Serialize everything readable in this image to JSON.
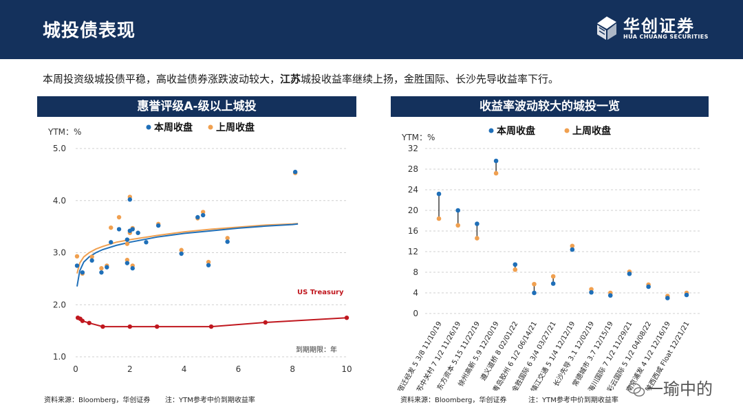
{
  "header": {
    "title": "城投债表现"
  },
  "logo": {
    "name_cn": "华创证券",
    "name_en": "HUA CHUANG SECURITIES"
  },
  "summary": {
    "part1": "本周投资级城投债平稳，高收益债券涨跌波动较大，",
    "bold": "江苏",
    "part2": "城投收益率继续上扬，金胜国际、长沙先导收益率下行。"
  },
  "watermark": "一瑜中的",
  "colors": {
    "current": "#1f6fb8",
    "previous": "#f0a050",
    "treasury": "#c0171e",
    "header": "#14315c"
  },
  "chart_data": [
    {
      "type": "scatter",
      "title": "惠誉评级A-级以上城投",
      "ylabel": "YTM：%",
      "xlabel": "到期期限：年",
      "xlim": [
        0,
        10
      ],
      "ylim": [
        1.0,
        5.0
      ],
      "xticks": [
        "0",
        "2",
        "4",
        "6",
        "8",
        "10"
      ],
      "yticks": [
        "1.0",
        "2.0",
        "3.0",
        "4.0",
        "5.0"
      ],
      "legend": [
        "本周收盘",
        "上周收盘"
      ],
      "annotation": "US Treasury",
      "footnote_source": "资料来源：Bloomberg，华创证券",
      "footnote_note": "注：YTM参考中价到期收益率",
      "series": [
        {
          "name": "本周收盘",
          "points": [
            [
              0.05,
              2.75
            ],
            [
              0.25,
              2.62
            ],
            [
              0.6,
              2.85
            ],
            [
              0.95,
              2.62
            ],
            [
              1.15,
              2.72
            ],
            [
              1.3,
              3.2
            ],
            [
              1.6,
              3.45
            ],
            [
              1.9,
              2.8
            ],
            [
              1.9,
              3.25
            ],
            [
              2.0,
              3.42
            ],
            [
              2.0,
              4.02
            ],
            [
              2.1,
              2.7
            ],
            [
              2.1,
              3.45
            ],
            [
              2.3,
              3.38
            ],
            [
              2.6,
              3.2
            ],
            [
              3.05,
              3.52
            ],
            [
              3.9,
              2.98
            ],
            [
              4.5,
              3.68
            ],
            [
              4.7,
              3.72
            ],
            [
              4.9,
              2.76
            ],
            [
              5.6,
              3.21
            ],
            [
              8.1,
              4.55
            ]
          ]
        },
        {
          "name": "上周收盘",
          "points": [
            [
              0.05,
              2.93
            ],
            [
              0.25,
              2.6
            ],
            [
              0.6,
              2.92
            ],
            [
              0.95,
              2.7
            ],
            [
              1.15,
              2.75
            ],
            [
              1.3,
              3.48
            ],
            [
              1.6,
              3.68
            ],
            [
              1.9,
              2.86
            ],
            [
              1.9,
              3.17
            ],
            [
              2.0,
              3.38
            ],
            [
              2.0,
              4.07
            ],
            [
              2.1,
              2.75
            ],
            [
              2.1,
              3.47
            ],
            [
              2.3,
              3.38
            ],
            [
              3.05,
              3.55
            ],
            [
              3.9,
              3.05
            ],
            [
              4.5,
              3.66
            ],
            [
              4.7,
              3.78
            ],
            [
              4.9,
              2.82
            ],
            [
              5.6,
              3.28
            ],
            [
              8.1,
              4.53
            ]
          ]
        },
        {
          "name": "本周拟合",
          "points": [
            [
              0.05,
              2.35
            ],
            [
              0.15,
              2.65
            ],
            [
              0.3,
              2.82
            ],
            [
              0.5,
              2.92
            ],
            [
              0.75,
              3.0
            ],
            [
              1.0,
              3.06
            ],
            [
              1.5,
              3.14
            ],
            [
              2.0,
              3.2
            ],
            [
              3.0,
              3.3
            ],
            [
              4.0,
              3.37
            ],
            [
              5.0,
              3.42
            ],
            [
              6.0,
              3.47
            ],
            [
              7.0,
              3.51
            ],
            [
              8.0,
              3.54
            ],
            [
              8.2,
              3.55
            ]
          ]
        },
        {
          "name": "上周拟合",
          "points": [
            [
              0.05,
              2.6
            ],
            [
              0.15,
              2.8
            ],
            [
              0.3,
              2.92
            ],
            [
              0.5,
              3.0
            ],
            [
              0.75,
              3.07
            ],
            [
              1.0,
              3.12
            ],
            [
              1.5,
              3.2
            ],
            [
              2.0,
              3.25
            ],
            [
              3.0,
              3.33
            ],
            [
              4.0,
              3.4
            ],
            [
              5.0,
              3.45
            ],
            [
              6.0,
              3.49
            ],
            [
              7.0,
              3.53
            ],
            [
              8.0,
              3.55
            ],
            [
              8.2,
              3.56
            ]
          ]
        },
        {
          "name": "US Treasury",
          "points": [
            [
              0.08,
              1.75
            ],
            [
              0.17,
              1.73
            ],
            [
              0.25,
              1.69
            ],
            [
              0.5,
              1.65
            ],
            [
              1.0,
              1.58
            ],
            [
              2.0,
              1.58
            ],
            [
              3.0,
              1.58
            ],
            [
              5.0,
              1.58
            ],
            [
              7.0,
              1.66
            ],
            [
              10.0,
              1.75
            ]
          ]
        }
      ]
    },
    {
      "type": "scatter",
      "title": "收益率波动较大的城投一览",
      "ylabel": "YTM：%",
      "ylim": [
        0,
        32
      ],
      "yticks": [
        "0",
        "4",
        "8",
        "12",
        "16",
        "20",
        "24",
        "28",
        "32"
      ],
      "legend": [
        "本周收盘",
        "上周收盘"
      ],
      "footnote_source": "资料来源：Bloomberg，华创证券",
      "footnote_note": "注：YTM参考中价到期收益率",
      "categories": [
        "宿迁经发 5 3/8 11/10/19",
        "江苏中关村 7 1/2 11/26/19",
        "东方资本 5.15 11/22/19",
        "徐州高新 5.9 12/20/19",
        "遵义道桥 8 02/01/22",
        "青岛胶州 6 1/2 06/14/21",
        "金胜国际 6 3/4 03/27/21",
        "镇江交通 5 1/4 12/12/19",
        "长沙先导 3.1 12/02/19",
        "常德城市 3.7 12/15/19",
        "海川国际 7 1/2 11/29/21",
        "彩云国际 5 1/2 04/08/22",
        "南京浦发 4 1/2 12/16/19",
        "陕西西咸 Float 12/21/21"
      ],
      "series": [
        {
          "name": "本周收盘",
          "values": [
            23.2,
            20.0,
            17.4,
            29.6,
            9.5,
            4.0,
            5.8,
            12.4,
            4.1,
            3.5,
            7.7,
            5.2,
            3.0,
            3.6
          ]
        },
        {
          "name": "上周收盘",
          "values": [
            18.4,
            17.1,
            14.6,
            27.2,
            8.5,
            5.7,
            7.2,
            13.1,
            4.7,
            4.0,
            8.1,
            5.6,
            3.4,
            4.0
          ]
        }
      ]
    }
  ]
}
